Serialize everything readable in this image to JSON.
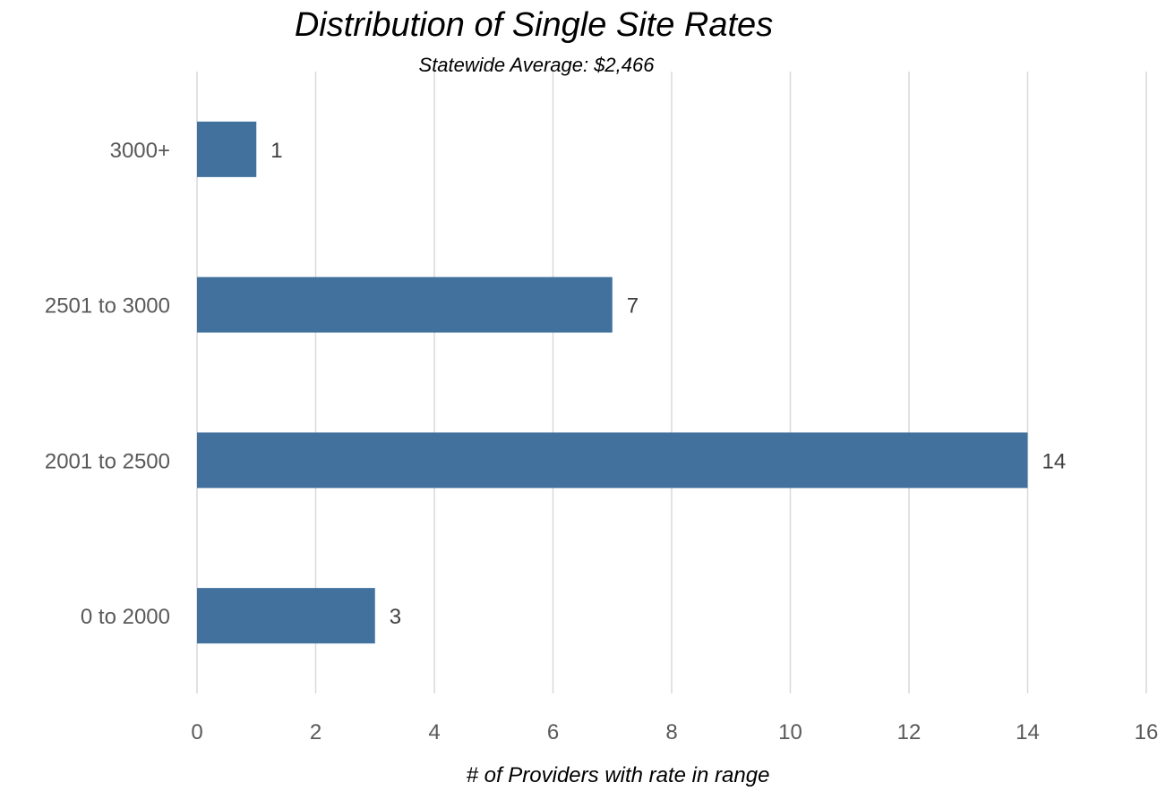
{
  "chart_data": {
    "type": "bar",
    "orientation": "horizontal",
    "title": "Distribution of Single Site Rates",
    "subtitle": "Statewide Average: $2,466",
    "xlabel": "# of Providers with rate in range",
    "ylabel": "",
    "categories": [
      "3000+",
      "2501 to 3000",
      "2001 to 2500",
      "0 to 2000"
    ],
    "values": [
      1,
      7,
      14,
      3
    ],
    "xlim": [
      0,
      16
    ],
    "xticks": [
      "0",
      "2",
      "4",
      "6",
      "8",
      "10",
      "12",
      "14",
      "16"
    ],
    "grid": true,
    "legend": "none",
    "bar_color": "#41719c"
  }
}
